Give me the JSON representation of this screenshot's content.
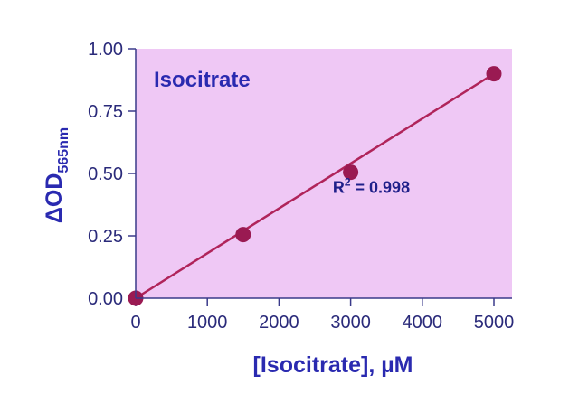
{
  "chart_data": {
    "type": "scatter",
    "title": "Isocitrate",
    "xlabel": "[Isocitrate], µM",
    "ylabel_main": "ΔOD",
    "ylabel_sub": "565nm",
    "xlim": [
      0,
      5000
    ],
    "ylim": [
      0,
      1.0
    ],
    "xticks": [
      0,
      1000,
      2000,
      3000,
      4000,
      5000
    ],
    "xtick_labels": [
      "0",
      "1000",
      "2000",
      "3000",
      "4000",
      "5000"
    ],
    "yticks": [
      0,
      0.25,
      0.5,
      0.75,
      1.0
    ],
    "ytick_labels": [
      "0.00",
      "0.25",
      "0.50",
      "0.75",
      "1.00"
    ],
    "series": [
      {
        "points": [
          {
            "x": 0,
            "y": 0.0
          },
          {
            "x": 1500,
            "y": 0.255
          },
          {
            "x": 3000,
            "y": 0.505
          },
          {
            "x": 5000,
            "y": 0.9
          }
        ]
      }
    ],
    "fit_line": {
      "x": [
        0,
        5000
      ],
      "y": [
        0.0,
        0.9
      ]
    },
    "annotation": {
      "base": "R",
      "sup": "2",
      "rest": " = 0.998",
      "at": {
        "x": 3950,
        "y": 0.465
      }
    },
    "colors": {
      "plot_bg": "#efc8f5",
      "point": "#9a1a52",
      "line": "#b0245a",
      "axis": "#3a3a8a",
      "tick_text": "#2a2a7a",
      "title_text": "#2a2ab0"
    },
    "grid": false,
    "legend": "none"
  }
}
